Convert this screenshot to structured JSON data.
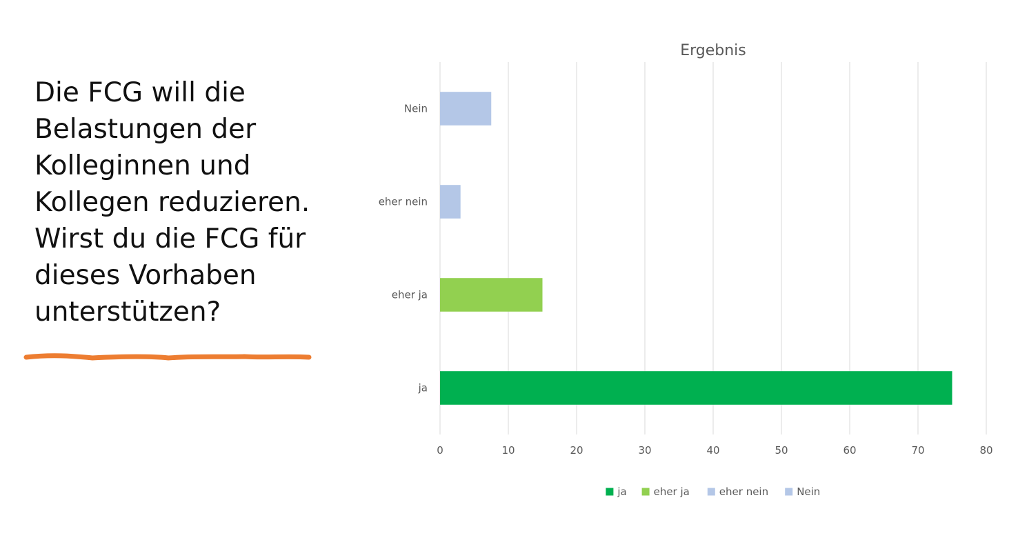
{
  "slide": {
    "question_lines": [
      "Die FCG will die",
      "Belastungen der",
      "Kolleginnen und",
      "Kollegen reduzieren.",
      "Wirst du die FCG für",
      "dieses Vorhaben",
      "unterstützen?"
    ],
    "underline_color": "#ED7D31"
  },
  "chart_data": {
    "type": "bar",
    "orientation": "horizontal",
    "title": "Ergebnis",
    "categories": [
      "ja",
      "eher ja",
      "eher nein",
      "Nein"
    ],
    "values": [
      75,
      15,
      3,
      7.5
    ],
    "colors": [
      "#00B050",
      "#92D050",
      "#B4C7E7",
      "#B4C7E7"
    ],
    "xlim": [
      0,
      80
    ],
    "xticks": [
      0,
      10,
      20,
      30,
      40,
      50,
      60,
      70,
      80
    ],
    "grid": true,
    "legend": {
      "position": "bottom",
      "entries": [
        {
          "label": "ja",
          "color": "#00B050"
        },
        {
          "label": "eher ja",
          "color": "#92D050"
        },
        {
          "label": "eher nein",
          "color": "#B4C7E7"
        },
        {
          "label": "Nein",
          "color": "#B4C7E7"
        }
      ]
    }
  }
}
